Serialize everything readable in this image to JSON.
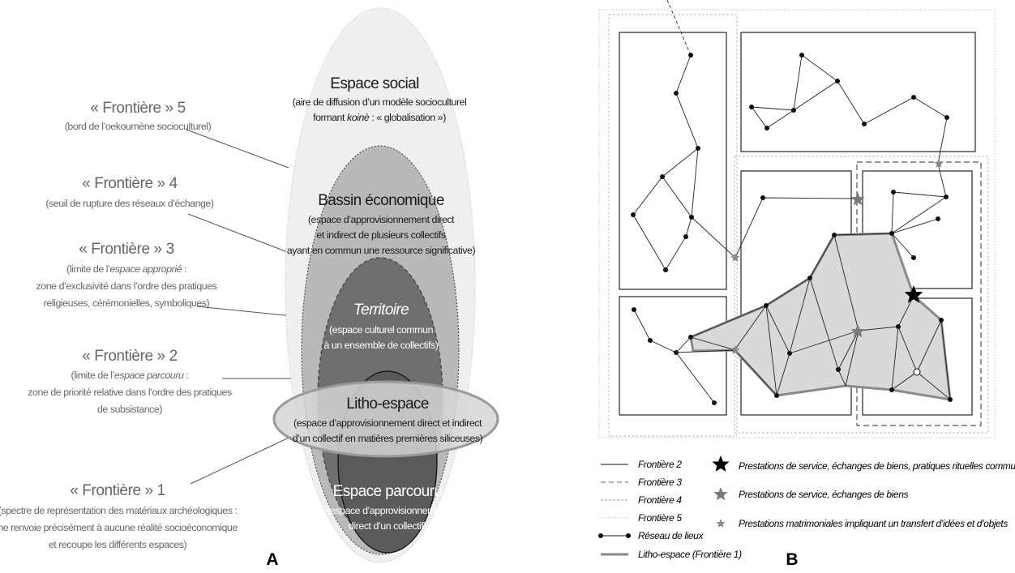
{
  "panel_a": {
    "letter": "A",
    "zones": [
      {
        "id": "social",
        "title": "Espace social",
        "lines": [
          "(aire de diffusion d’un modèle socioculturel",
          "formant koinè : « globalisation »)"
        ],
        "fill": "#efefef"
      },
      {
        "id": "bassin",
        "title": "Bassin économique",
        "lines": [
          "(espace d’approvisionnement direct",
          "et indirect de plusieurs collectifs",
          "ayant en commun une ressource significative)"
        ],
        "fill": "#b9b9b9"
      },
      {
        "id": "territoire",
        "title": "Territoire",
        "lines": [
          "(espace culturel commun",
          "à un ensemble de collectifs)"
        ],
        "fill": "#6f6f6f"
      },
      {
        "id": "litho",
        "title": "Litho-espace",
        "lines": [
          "(espace d’approvisionnement direct et indirect",
          "d’un collectif en matières premières siliceuses)"
        ],
        "fill": "#d4d4d4"
      },
      {
        "id": "parcouru",
        "title": "Espace parcouru",
        "lines": [
          "(espace d’approvisionnement",
          "direct d’un collectif)"
        ],
        "fill": "#5c5c5c"
      }
    ],
    "frontiers": [
      {
        "title": "« Frontière » 5",
        "lines": [
          "(bord de l’oekoumène socioculturel)"
        ]
      },
      {
        "title": "« Frontière » 4",
        "lines": [
          "(seuil de rupture des réseaux d’échange)"
        ]
      },
      {
        "title": "« Frontière » 3",
        "lines": [
          "(limite de l’espace approprié :",
          "zone d’exclusivité dans l’ordre des pratiques",
          "religieuses, cérémonielles, symboliques)"
        ]
      },
      {
        "title": "« Frontière » 2",
        "lines": [
          "(limite de l’espace parcouru :",
          "zone de priorité relative dans l’ordre des pratiques",
          "de subsistance)"
        ]
      },
      {
        "title": "« Frontière » 1",
        "lines": [
          "(spectre de représentation des matériaux archéologiques :",
          "ne renvoie  précisément à aucune réalité socioéconomique",
          "et recoupe les différents espaces)"
        ]
      }
    ]
  },
  "panel_b": {
    "letter": "B",
    "legend_lines": [
      {
        "icon": "solid-line",
        "label": "Frontière 2"
      },
      {
        "icon": "dashed-line",
        "label": "Frontière 3"
      },
      {
        "icon": "short-dashed-line",
        "label": "Frontière 4"
      },
      {
        "icon": "dotted-line",
        "label": "Frontière 5"
      },
      {
        "icon": "network-line",
        "label": "Réseau de lieux"
      },
      {
        "icon": "thick-gray-line",
        "label": "Litho-espace (Frontière 1)"
      }
    ],
    "legend_stars": [
      {
        "icon": "black-star-icon",
        "label": "Prestations de service, échanges de biens, pratiques rituelles communautaires"
      },
      {
        "icon": "gray-star-icon",
        "label": "Prestations de service, échanges de biens"
      },
      {
        "icon": "small-gray-star-icon",
        "label": "Prestations matrimoniales impliquant un transfert d’idées et d’objets"
      }
    ]
  },
  "colors": {
    "frame": "#222222",
    "light_dash": "#b0b0b0",
    "litho_fill": "#d9d9d9",
    "litho_edge": "#8a8a8a",
    "star_gray": "#7a7a7a"
  }
}
